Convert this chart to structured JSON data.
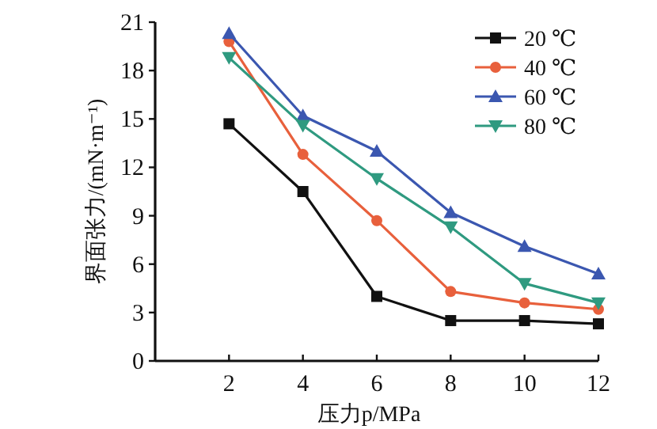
{
  "chart_data": {
    "type": "line",
    "xlabel": "压力p/MPa",
    "ylabel": "界面张力/(mN·m⁻¹)",
    "x": [
      2,
      4,
      6,
      8,
      10,
      12
    ],
    "xlim": [
      0,
      12
    ],
    "xticks": [
      2,
      4,
      6,
      8,
      10,
      12
    ],
    "ylim": [
      0,
      21
    ],
    "yticks": [
      0,
      3,
      6,
      9,
      12,
      15,
      18,
      21
    ],
    "legend": "top right",
    "grid": false,
    "line_style": "solid",
    "series": [
      {
        "name": "20 ℃",
        "color": "#111111",
        "marker": "square",
        "values": [
          14.7,
          10.5,
          4.0,
          2.5,
          2.5,
          2.3
        ]
      },
      {
        "name": "40 ℃",
        "color": "#e8603c",
        "marker": "circle",
        "values": [
          19.8,
          12.8,
          8.7,
          4.3,
          3.6,
          3.2
        ]
      },
      {
        "name": "60 ℃",
        "color": "#3b57b0",
        "marker": "triangle",
        "values": [
          20.3,
          15.2,
          13.0,
          9.2,
          7.1,
          5.4
        ]
      },
      {
        "name": "80 ℃",
        "color": "#2f9a80",
        "marker": "triangle-down",
        "values": [
          18.8,
          14.6,
          11.3,
          8.3,
          4.8,
          3.6
        ]
      }
    ]
  }
}
